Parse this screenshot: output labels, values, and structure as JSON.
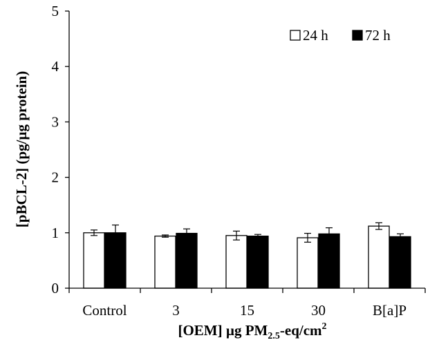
{
  "chart_data": {
    "type": "bar",
    "categories": [
      "Control",
      "3",
      "15",
      "30",
      "B[a]P"
    ],
    "series": [
      {
        "name": "24 h",
        "color": "#ffffff",
        "values": [
          1.0,
          0.94,
          0.95,
          0.91,
          1.12
        ],
        "errors": [
          0.05,
          0.02,
          0.08,
          0.08,
          0.06
        ]
      },
      {
        "name": "72 h",
        "color": "#000000",
        "values": [
          1.0,
          0.99,
          0.94,
          0.98,
          0.93
        ],
        "errors": [
          0.14,
          0.08,
          0.03,
          0.11,
          0.05
        ]
      }
    ],
    "xlabel": {
      "prefix": "[OEM] µg PM",
      "subscript": "2.5",
      "middle": "-eq/cm",
      "superscript": "2"
    },
    "ylabel": "[pBCL-2] (pg/µg protein)",
    "ylim": [
      0,
      5
    ],
    "yticks": [
      "0",
      "1",
      "2",
      "3",
      "4",
      "5"
    ],
    "grid": false,
    "legend_position": "top-right"
  }
}
